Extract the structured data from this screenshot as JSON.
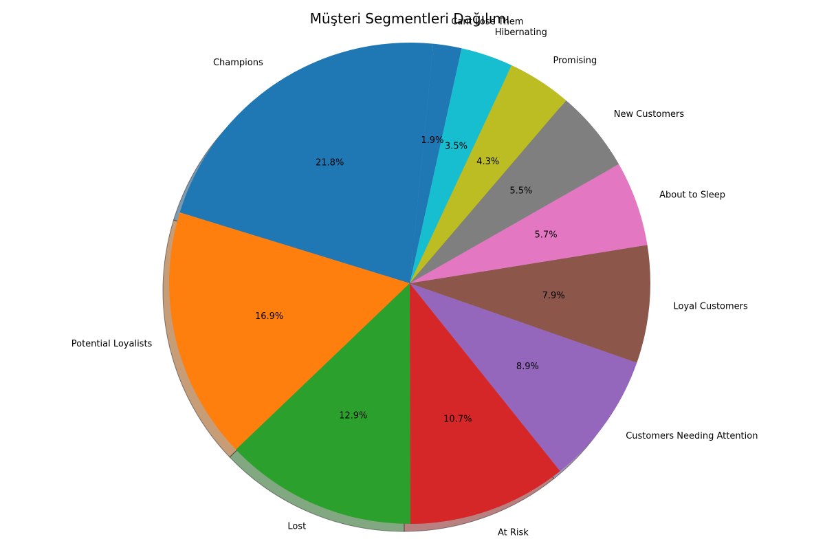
{
  "chart_data": {
    "type": "pie",
    "title": "Müşteri Segmentleri Dağılımı",
    "shadow": true,
    "slices": [
      {
        "label": "Champions",
        "value": 21.8,
        "pct_label": "21.8%",
        "color": "#1f77b4"
      },
      {
        "label": "Potential Loyalists",
        "value": 16.9,
        "pct_label": "16.9%",
        "color": "#ff7f0e"
      },
      {
        "label": "Lost",
        "value": 12.9,
        "pct_label": "12.9%",
        "color": "#2ca02c"
      },
      {
        "label": "At Risk",
        "value": 10.7,
        "pct_label": "10.7%",
        "color": "#d62728"
      },
      {
        "label": "Customers Needing Attention",
        "value": 8.9,
        "pct_label": "8.9%",
        "color": "#9467bd"
      },
      {
        "label": "Loyal Customers",
        "value": 7.9,
        "pct_label": "7.9%",
        "color": "#8c564b"
      },
      {
        "label": "About to Sleep",
        "value": 5.7,
        "pct_label": "5.7%",
        "color": "#e377c2"
      },
      {
        "label": "New Customers",
        "value": 5.5,
        "pct_label": "5.5%",
        "color": "#7f7f7f"
      },
      {
        "label": "Promising",
        "value": 4.3,
        "pct_label": "4.3%",
        "color": "#bcbd22"
      },
      {
        "label": "Hibernating",
        "value": 3.5,
        "pct_label": "3.5%",
        "color": "#17becf"
      },
      {
        "label": "Cant Lose Them",
        "value": 1.9,
        "pct_label": "1.9%",
        "color": "#1f77b4"
      }
    ]
  }
}
